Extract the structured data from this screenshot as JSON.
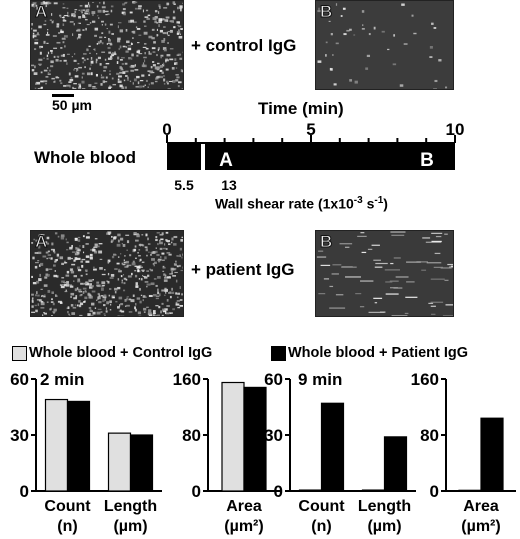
{
  "top_row": {
    "panel_a_label": "A",
    "panel_b_label": "B",
    "condition": "+ control IgG"
  },
  "scale_bar": {
    "label": "50 µm"
  },
  "timeline": {
    "title": "Time (min)",
    "row_label": "Whole blood",
    "ticks": [
      "0",
      "5",
      "10"
    ],
    "marker_a": "A",
    "marker_b": "B",
    "shear_values": [
      "5.5",
      "13"
    ],
    "shear_axis_label": "Wall shear rate (1x10",
    "shear_axis_exp": "-3",
    "shear_axis_unit": " s",
    "shear_axis_unit_exp": "-1",
    "shear_axis_close": ")"
  },
  "bottom_row": {
    "panel_a_label": "A",
    "panel_b_label": "B",
    "condition": "+ patient IgG"
  },
  "legend": {
    "control": "Whole blood + Control IgG",
    "patient": "Whole blood + Patient IgG",
    "control_color": "#e0e0e0",
    "patient_color": "#000000"
  },
  "chart_data": [
    {
      "type": "bar",
      "title": "2 min",
      "ylim": [
        0,
        60
      ],
      "yticks": [
        "0",
        "30",
        "60"
      ],
      "categories": [
        {
          "line1": "Count",
          "line2": "(n)"
        },
        {
          "line1": "Length",
          "line2": "(µm)"
        }
      ],
      "series": [
        {
          "name": "Whole blood + Control IgG",
          "values": [
            49,
            31
          ]
        },
        {
          "name": "Whole blood + Patient IgG",
          "values": [
            48,
            30
          ]
        }
      ]
    },
    {
      "type": "bar",
      "title": "",
      "ylim": [
        0,
        160
      ],
      "yticks": [
        "0",
        "80",
        "160"
      ],
      "categories": [
        {
          "line1": "Area",
          "line2": "(µm²)"
        }
      ],
      "series": [
        {
          "name": "Whole blood + Control IgG",
          "values": [
            155
          ]
        },
        {
          "name": "Whole blood + Patient IgG",
          "values": [
            148
          ]
        }
      ]
    },
    {
      "type": "bar",
      "title": "9 min",
      "ylim": [
        0,
        60
      ],
      "yticks": [
        "0",
        "30",
        "60"
      ],
      "categories": [
        {
          "line1": "Count",
          "line2": "(n)"
        },
        {
          "line1": "Length",
          "line2": "(µm)"
        }
      ],
      "series": [
        {
          "name": "Whole blood + Control IgG",
          "values": [
            0.5,
            0.5
          ]
        },
        {
          "name": "Whole blood + Patient IgG",
          "values": [
            47,
            29
          ]
        }
      ]
    },
    {
      "type": "bar",
      "title": "",
      "ylim": [
        0,
        160
      ],
      "yticks": [
        "0",
        "80",
        "160"
      ],
      "categories": [
        {
          "line1": "Area",
          "line2": "(µm²)"
        }
      ],
      "series": [
        {
          "name": "Whole blood + Control IgG",
          "values": [
            1
          ]
        },
        {
          "name": "Whole blood + Patient IgG",
          "values": [
            104
          ]
        }
      ]
    }
  ]
}
